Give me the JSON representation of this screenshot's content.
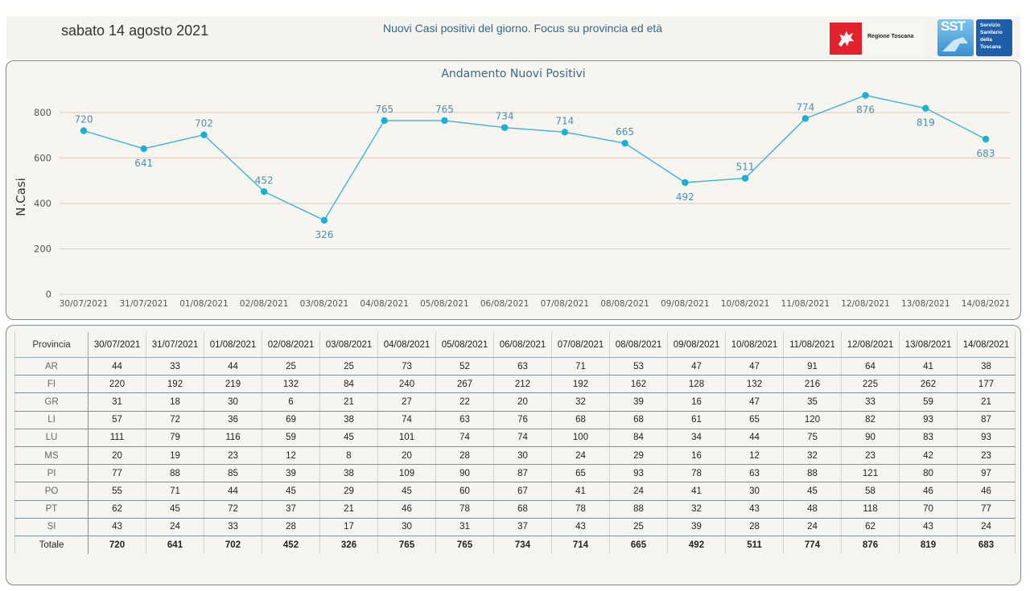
{
  "header": {
    "date": "sabato 14 agosto 2021",
    "title": "Nuovi Casi positivi del giorno. Focus su provincia ed età",
    "logo_regione": "Regione Toscana",
    "logo_sst_short": "SST",
    "logo_sst_lines": [
      "Servizio",
      "Sanitario",
      "della",
      "Toscana"
    ]
  },
  "colors": {
    "line": "#3fb3d5",
    "point": "#1ab0d3",
    "label": "#4a8fb0",
    "grid": "#e0c9bd"
  },
  "chart_data": {
    "type": "line",
    "title": "Andamento Nuovi Positivi",
    "xlabel": "",
    "ylabel": "N.Casi",
    "ylim": [
      0,
      900
    ],
    "yticks": [
      0,
      200,
      400,
      600,
      800
    ],
    "grid": true,
    "categories": [
      "30/07/2021",
      "31/07/2021",
      "01/08/2021",
      "02/08/2021",
      "03/08/2021",
      "04/08/2021",
      "05/08/2021",
      "06/08/2021",
      "07/08/2021",
      "08/08/2021",
      "09/08/2021",
      "10/08/2021",
      "11/08/2021",
      "12/08/2021",
      "13/08/2021",
      "14/08/2021"
    ],
    "series": [
      {
        "name": "Nuovi Positivi",
        "values": [
          720,
          641,
          702,
          452,
          326,
          765,
          765,
          734,
          714,
          665,
          492,
          511,
          774,
          876,
          819,
          683
        ]
      }
    ]
  },
  "table": {
    "corner": "Provincia",
    "columns": [
      "30/07/2021",
      "31/07/2021",
      "01/08/2021",
      "02/08/2021",
      "03/08/2021",
      "04/08/2021",
      "05/08/2021",
      "06/08/2021",
      "07/08/2021",
      "08/08/2021",
      "09/08/2021",
      "10/08/2021",
      "11/08/2021",
      "12/08/2021",
      "13/08/2021",
      "14/08/2021"
    ],
    "rows": [
      {
        "label": "AR",
        "values": [
          "44",
          "33",
          "44",
          "25",
          "25",
          "73",
          "52",
          "63",
          "71",
          "53",
          "47",
          "47",
          "91",
          "64",
          "41",
          "38"
        ]
      },
      {
        "label": "FI",
        "values": [
          "220",
          "192",
          "219",
          "132",
          "84",
          "240",
          "267",
          "212",
          "192",
          "162",
          "128",
          "132",
          "216",
          "225",
          "262",
          "177"
        ]
      },
      {
        "label": "GR",
        "values": [
          "31",
          "18",
          "30",
          "6",
          "21",
          "27",
          "22",
          "20",
          "32",
          "39",
          "16",
          "47",
          "35",
          "33",
          "59",
          "21"
        ]
      },
      {
        "label": "LI",
        "values": [
          "57",
          "72",
          "36",
          "69",
          "38",
          "74",
          "63",
          "76",
          "68",
          "68",
          "61",
          "65",
          "120",
          "82",
          "93",
          "87"
        ]
      },
      {
        "label": "LU",
        "values": [
          "111",
          "79",
          "116",
          "59",
          "45",
          "101",
          "74",
          "74",
          "100",
          "84",
          "34",
          "44",
          "75",
          "90",
          "83",
          "93"
        ]
      },
      {
        "label": "MS",
        "values": [
          "20",
          "19",
          "23",
          "12",
          "8",
          "20",
          "28",
          "30",
          "24",
          "29",
          "16",
          "12",
          "32",
          "23",
          "42",
          "23"
        ]
      },
      {
        "label": "PI",
        "values": [
          "77",
          "88",
          "85",
          "39",
          "38",
          "109",
          "90",
          "87",
          "65",
          "93",
          "78",
          "63",
          "88",
          "121",
          "80",
          "97"
        ]
      },
      {
        "label": "PO",
        "values": [
          "55",
          "71",
          "44",
          "45",
          "29",
          "45",
          "60",
          "67",
          "41",
          "24",
          "41",
          "30",
          "45",
          "58",
          "46",
          "46"
        ]
      },
      {
        "label": "PT",
        "values": [
          "62",
          "45",
          "72",
          "37",
          "21",
          "46",
          "78",
          "68",
          "78",
          "88",
          "32",
          "43",
          "48",
          "118",
          "70",
          "77"
        ]
      },
      {
        "label": "SI",
        "values": [
          "43",
          "24",
          "33",
          "28",
          "17",
          "30",
          "31",
          "37",
          "43",
          "25",
          "39",
          "28",
          "24",
          "62",
          "43",
          "24"
        ]
      }
    ],
    "total": {
      "label": "Totale",
      "values": [
        "720",
        "641",
        "702",
        "452",
        "326",
        "765",
        "765",
        "734",
        "714",
        "665",
        "492",
        "511",
        "774",
        "876",
        "819",
        "683"
      ]
    }
  }
}
